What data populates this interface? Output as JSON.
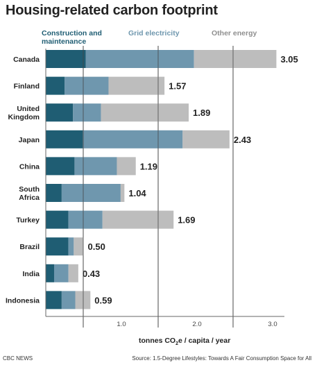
{
  "page": {
    "title": "Housing-related carbon footprint",
    "source": "Source: 1.5-Degree Lifestyles: Towards A Fair Consumption Space for All",
    "credit": "CBC NEWS"
  },
  "chart_data": {
    "type": "bar",
    "orientation": "horizontal",
    "stacked": true,
    "title": "Housing-related carbon footprint",
    "xlabel_parts": [
      "tonnes CO",
      "2",
      "e / capita / year"
    ],
    "ylabel": "",
    "xlim": [
      0,
      3.3
    ],
    "xticks": [
      {
        "value": 1.0,
        "label": "1.0"
      },
      {
        "value": 2.0,
        "label": "2.0"
      },
      {
        "value": 3.0,
        "label": "3.0"
      }
    ],
    "grid": false,
    "legend_placement": "top",
    "categories": [
      [
        "Canada"
      ],
      [
        "Finland"
      ],
      [
        "United",
        "Kingdom"
      ],
      [
        "Japan"
      ],
      [
        "China"
      ],
      [
        "South",
        "Africa"
      ],
      [
        "Turkey"
      ],
      [
        "Brazil"
      ],
      [
        "India"
      ],
      [
        "Indonesia"
      ]
    ],
    "series": [
      {
        "name": [
          "Construction and",
          "maintenance"
        ],
        "color": "#1f5d73",
        "values": [
          0.53,
          0.25,
          0.36,
          0.49,
          0.38,
          0.21,
          0.3,
          0.3,
          0.11,
          0.21
        ]
      },
      {
        "name": [
          "Grid electricity"
        ],
        "color": "#6f97ae",
        "values": [
          1.43,
          0.58,
          0.37,
          1.32,
          0.56,
          0.78,
          0.45,
          0.07,
          0.19,
          0.18
        ]
      },
      {
        "name": [
          "Other energy"
        ],
        "color": "#bdbdbd",
        "values": [
          1.09,
          0.74,
          1.16,
          0.62,
          0.25,
          0.05,
          0.94,
          0.13,
          0.13,
          0.2
        ]
      }
    ],
    "totals": [
      "3.05",
      "1.57",
      "1.89",
      "2.43",
      "1.19",
      "1.04",
      "1.69",
      "0.50",
      "0.43",
      "0.59"
    ]
  },
  "colors": {
    "legend_text": "#1f5d73",
    "legend_text_2": "#6f97ae",
    "legend_text_3": "#8f8f8f",
    "axis": "#666666"
  }
}
